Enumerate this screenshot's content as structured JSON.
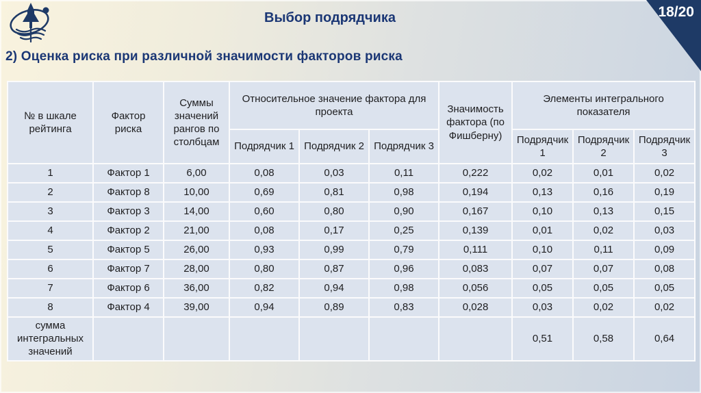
{
  "page": {
    "title": "Выбор подрядчика",
    "subtitle": "2) Оценка риска при различной значимости факторов риска",
    "page_number": "18/20"
  },
  "colors": {
    "accent_navy": "#1b3775",
    "corner_triangle": "#1e3a66",
    "cell_background": "#dce3ee",
    "grid_line": "#fbfbfc",
    "background_left": "#f9f3de",
    "background_right": "#c9d4e2"
  },
  "logo": {
    "name": "rocket-orbit-emblem"
  },
  "table": {
    "headers": {
      "col_rating": "№ в шкале рейтинга",
      "col_factor": "Фактор риска",
      "col_sums": "Суммы значений рангов по столбцам",
      "group_relative": "Относительное значение фактора для проекта",
      "col_significance": "Значимость фактора (по Фишберну)",
      "group_integral": "Элементы интегрального показателя",
      "subcols_relative": [
        "Подрядчик 1",
        "Подрядчик 2",
        "Подрядчик 3"
      ],
      "subcols_integral": [
        "Подрядчик 1",
        "Подрядчик 2",
        "Подрядчик 3"
      ]
    },
    "rows": [
      [
        "1",
        "Фактор 1",
        "6,00",
        "0,08",
        "0,03",
        "0,11",
        "0,222",
        "0,02",
        "0,01",
        "0,02"
      ],
      [
        "2",
        "Фактор 8",
        "10,00",
        "0,69",
        "0,81",
        "0,98",
        "0,194",
        "0,13",
        "0,16",
        "0,19"
      ],
      [
        "3",
        "Фактор 3",
        "14,00",
        "0,60",
        "0,80",
        "0,90",
        "0,167",
        "0,10",
        "0,13",
        "0,15"
      ],
      [
        "4",
        "Фактор 2",
        "21,00",
        "0,08",
        "0,17",
        "0,25",
        "0,139",
        "0,01",
        "0,02",
        "0,03"
      ],
      [
        "5",
        "Фактор 5",
        "26,00",
        "0,93",
        "0,99",
        "0,79",
        "0,111",
        "0,10",
        "0,11",
        "0,09"
      ],
      [
        "6",
        "Фактор 7",
        "28,00",
        "0,80",
        "0,87",
        "0,96",
        "0,083",
        "0,07",
        "0,07",
        "0,08"
      ],
      [
        "7",
        "Фактор 6",
        "36,00",
        "0,82",
        "0,94",
        "0,98",
        "0,056",
        "0,05",
        "0,05",
        "0,05"
      ],
      [
        "8",
        "Фактор 4",
        "39,00",
        "0,94",
        "0,89",
        "0,83",
        "0,028",
        "0,03",
        "0,02",
        "0,02"
      ]
    ],
    "footer": {
      "label": "сумма интегральных значений",
      "values": [
        "0,51",
        "0,58",
        "0,64"
      ]
    }
  }
}
